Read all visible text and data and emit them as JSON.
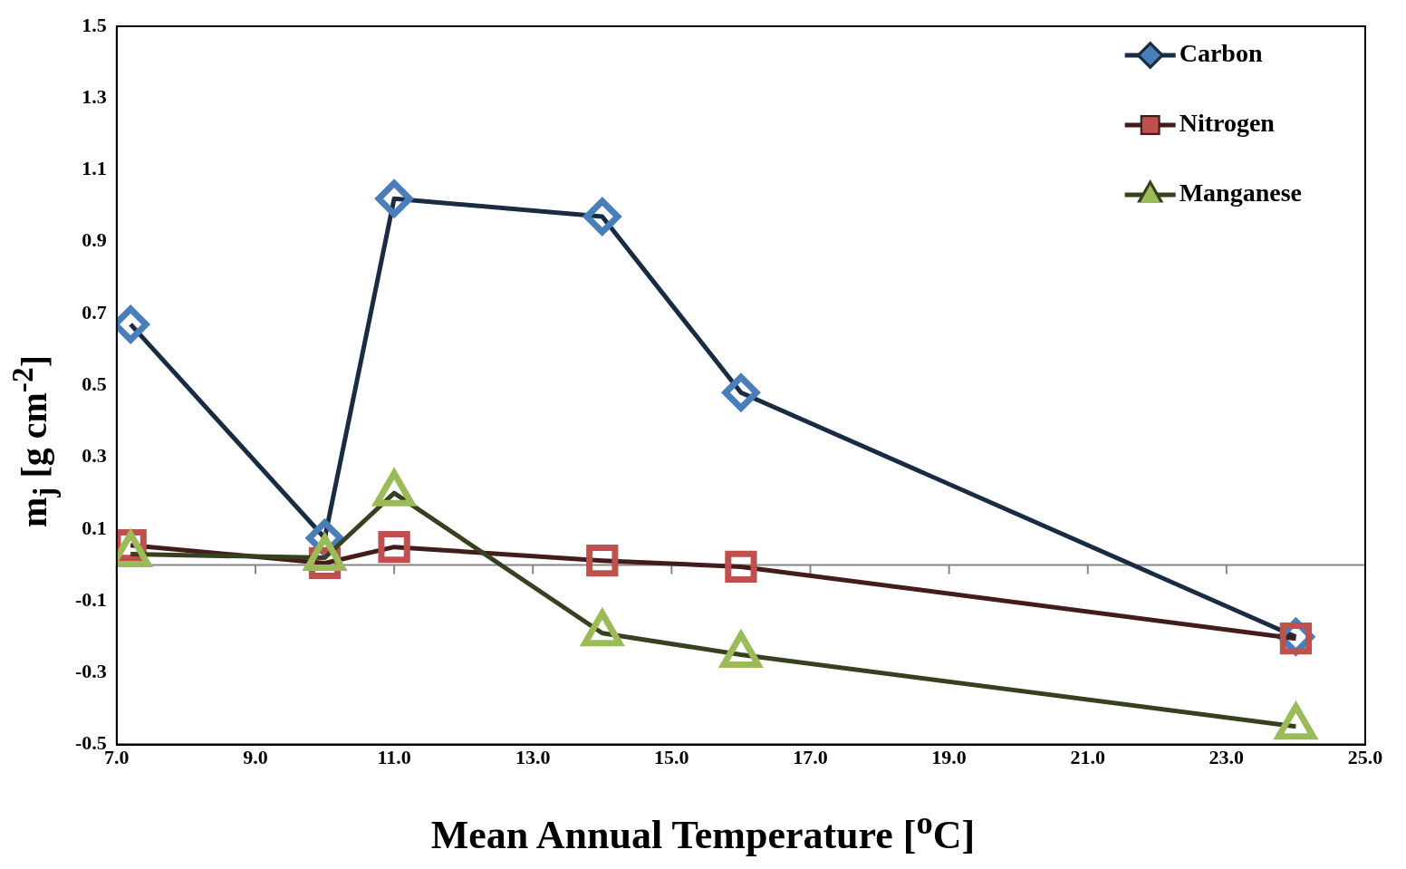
{
  "chart_data": {
    "type": "line",
    "xlabel": "Mean Annual Temperature [$^{o}$C]",
    "ylabel": "m$_{j}$ [g cm$^{-2}$]",
    "x": [
      7.2,
      10.0,
      11.0,
      14.0,
      16.0,
      24.0
    ],
    "series": [
      {
        "name": "Carbon",
        "color": "#4a7ebb",
        "marker": "diamond",
        "values": [
          0.67,
          0.075,
          1.02,
          0.97,
          0.48,
          -0.2
        ]
      },
      {
        "name": "Nitrogen",
        "color": "#c0504d",
        "marker": "square",
        "values": [
          0.055,
          0.005,
          0.05,
          0.012,
          -0.005,
          -0.205
        ]
      },
      {
        "name": "Manganese",
        "color": "#9bbb59",
        "marker": "triangle",
        "values": [
          0.03,
          0.02,
          0.2,
          -0.19,
          -0.25,
          -0.45
        ]
      }
    ],
    "xlim": [
      7,
      25
    ],
    "xticks": [
      {
        "value": 7,
        "label": "7.0"
      },
      {
        "value": 9,
        "label": "9.0"
      },
      {
        "value": 11,
        "label": "11.0"
      },
      {
        "value": 13,
        "label": "13.0"
      },
      {
        "value": 15,
        "label": "15.0"
      },
      {
        "value": 17,
        "label": "17.0"
      },
      {
        "value": 19,
        "label": "19.0"
      },
      {
        "value": 21,
        "label": "21.0"
      },
      {
        "value": 23,
        "label": "23.0"
      },
      {
        "value": 25,
        "label": "25.0"
      }
    ],
    "ylim": [
      -0.5,
      1.5
    ],
    "yticks": [
      -0.5,
      -0.3,
      -0.1,
      0.1,
      0.3,
      0.5,
      0.7,
      0.9,
      1.1,
      1.3,
      1.5
    ],
    "ref_lines": [
      {
        "axis": "y",
        "value": 0,
        "color": "#868686"
      }
    ],
    "grid": false,
    "legend": "top right",
    "line_style": "solid"
  }
}
